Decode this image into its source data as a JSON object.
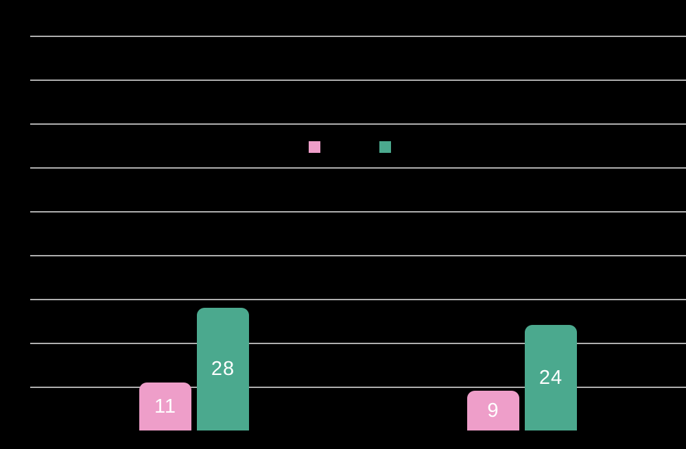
{
  "chart_data": {
    "type": "bar",
    "title": "",
    "xlabel": "",
    "ylabel": "",
    "categories": [
      "",
      ""
    ],
    "series": [
      {
        "key": "pink-series",
        "label": "",
        "color": "#ee9ec9",
        "values": [
          11,
          9
        ]
      },
      {
        "key": "teal-series",
        "label": "",
        "color": "#4ba98e",
        "values": [
          28,
          24
        ]
      }
    ],
    "value_labels": {
      "11": "11",
      "28": "28",
      "9": "9",
      "24": "24"
    },
    "value_label_color": "#ffffff",
    "ylim": [
      0,
      98
    ],
    "gridline_values": [
      10,
      20,
      30,
      40,
      50,
      60,
      70,
      80,
      90
    ],
    "grid": true,
    "background_color": "#000000",
    "gridline_color": "#b0b0b0",
    "legend_position": "upper-center",
    "legend": [
      {
        "swatch_color": "#ee9ec9",
        "label": ""
      },
      {
        "swatch_color": "#4ba98e",
        "label": ""
      }
    ]
  }
}
